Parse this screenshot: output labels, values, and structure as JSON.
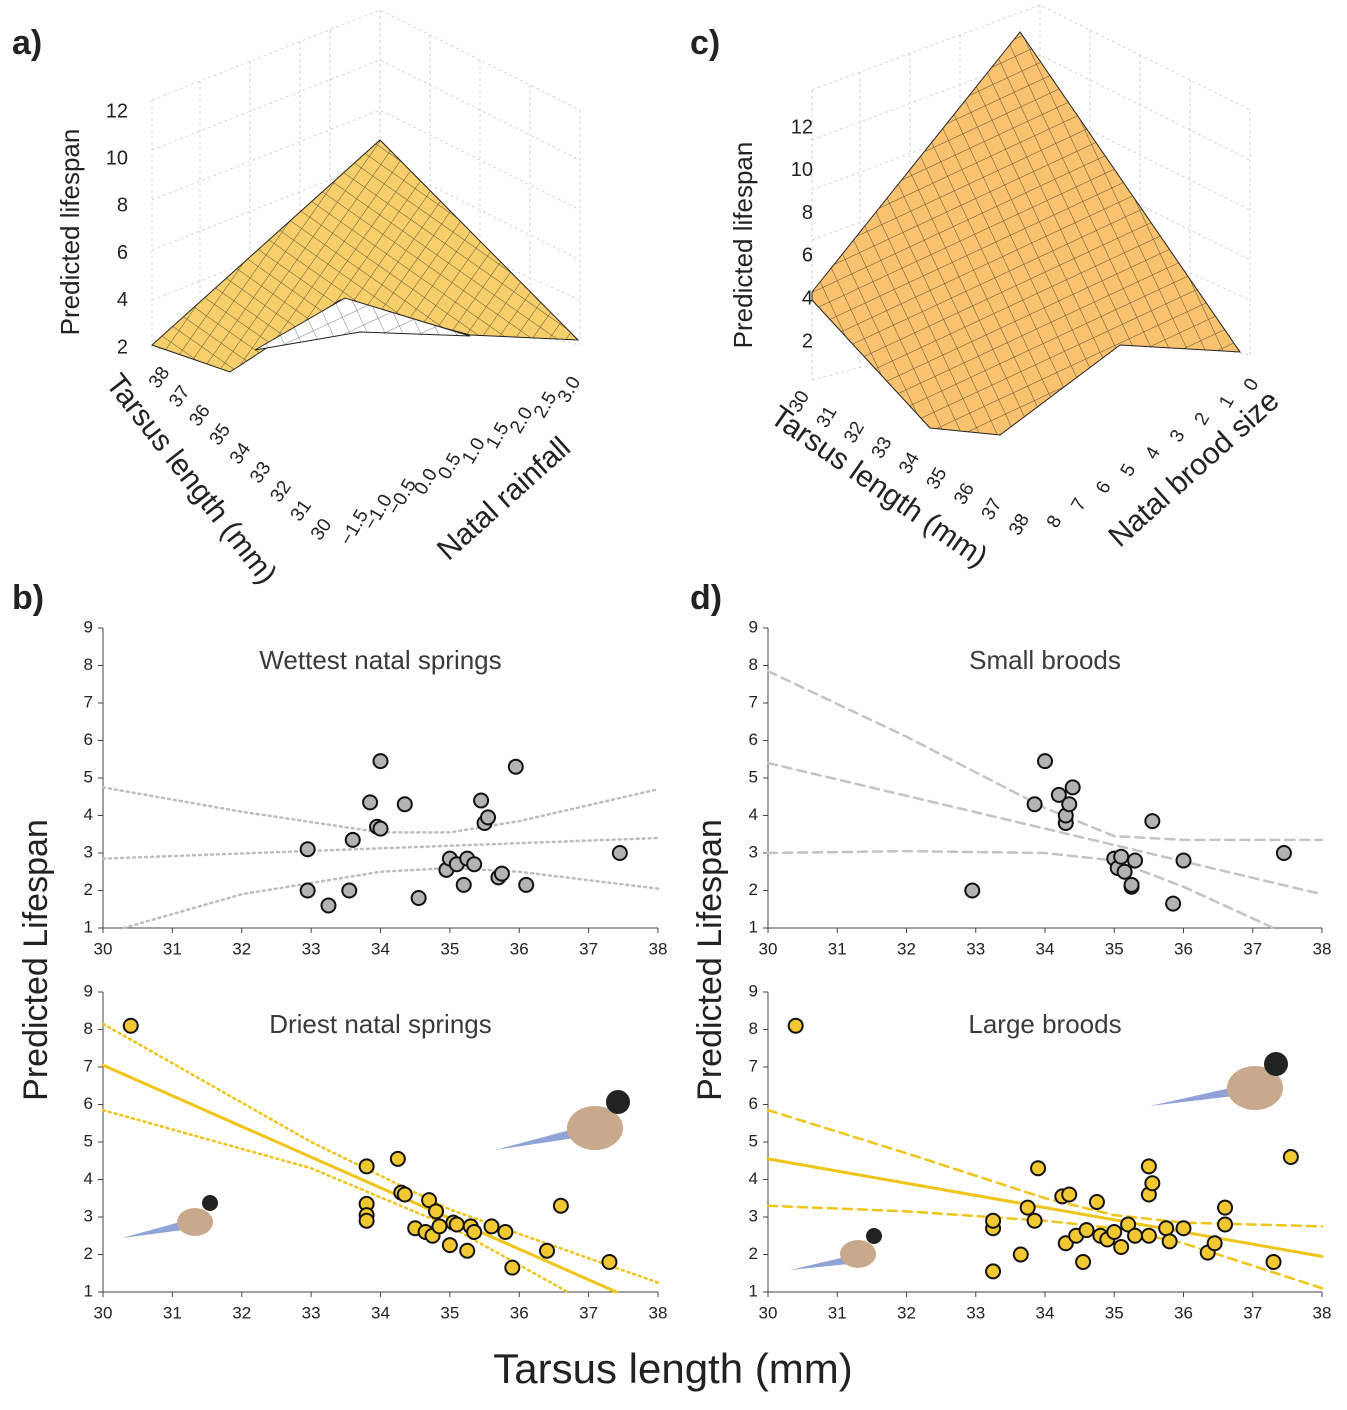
{
  "figure_xlabel": "Tarsus length (mm)",
  "chart_data": [
    {
      "type": "surface",
      "panel": "a)",
      "zlabel": "Predicted  lifespan",
      "xlabel": "Tarsus  length  (mm)",
      "ylabel": "Natal rainfall",
      "zlim": [
        2,
        12
      ],
      "zticks": [
        2,
        4,
        6,
        8,
        10,
        12
      ],
      "xlim": [
        30,
        38
      ],
      "xticks": [
        30,
        31,
        32,
        33,
        34,
        35,
        36,
        37,
        38
      ],
      "ylim": [
        -1.5,
        3.0
      ],
      "yticks": [
        {
          "value": -1.5,
          "label": "−1.5"
        },
        {
          "value": -1.0,
          "label": "−1.0"
        },
        {
          "value": -0.5,
          "label": "−0.5"
        },
        {
          "value": 0,
          "label": "0.0"
        },
        0.5,
        {
          "value": 1.0,
          "label": "1.0"
        },
        1.5,
        {
          "value": 2.0,
          "label": "2.0"
        },
        2.5,
        {
          "value": 3.0,
          "label": "3.0"
        }
      ],
      "color": "#f6cf6b"
    },
    {
      "type": "scatter",
      "panel": "b)",
      "title": "Wettest natal springs",
      "ylabel": "Predicted Lifespan",
      "xlim": [
        30,
        38
      ],
      "xticks": [
        30,
        31,
        32,
        33,
        34,
        35,
        36,
        37,
        38
      ],
      "ylim": [
        1,
        9
      ],
      "yticks": [
        1,
        2,
        3,
        4,
        5,
        6,
        7,
        8,
        9
      ],
      "points": {
        "color": "#b3b3b3",
        "x": [
          32.95,
          32.95,
          33.25,
          33.55,
          33.6,
          33.85,
          33.95,
          34.0,
          34.0,
          34.35,
          34.55,
          34.95,
          35.0,
          35.1,
          35.2,
          35.25,
          35.35,
          35.45,
          35.5,
          35.55,
          35.7,
          35.75,
          35.95,
          36.1,
          37.45
        ],
        "y": [
          3.1,
          2.0,
          1.6,
          2.0,
          3.35,
          4.35,
          3.7,
          3.65,
          5.45,
          4.3,
          1.8,
          2.55,
          2.85,
          2.7,
          2.15,
          2.85,
          2.7,
          4.4,
          3.8,
          3.95,
          2.35,
          2.45,
          5.3,
          2.15,
          3.0
        ]
      },
      "lines": [
        {
          "dash": "dotted",
          "color": "#bdbdbd",
          "x": [
            30,
            38
          ],
          "y": [
            2.85,
            3.4
          ]
        },
        {
          "dash": "dotted",
          "color": "#bdbdbd",
          "x": [
            30,
            32,
            34,
            35,
            36,
            38
          ],
          "y": [
            4.75,
            4.1,
            3.55,
            3.55,
            3.85,
            4.7
          ]
        },
        {
          "dash": "dotted",
          "color": "#bdbdbd",
          "x": [
            30.3,
            32,
            34,
            35,
            36,
            38
          ],
          "y": [
            1.0,
            1.9,
            2.5,
            2.6,
            2.5,
            2.05
          ]
        }
      ]
    },
    {
      "type": "scatter",
      "title": "Driest natal springs",
      "xlim": [
        30,
        38
      ],
      "xticks": [
        30,
        31,
        32,
        33,
        34,
        35,
        36,
        37,
        38
      ],
      "ylim": [
        1,
        9
      ],
      "yticks": [
        1,
        2,
        3,
        4,
        5,
        6,
        7,
        8,
        9
      ],
      "points": {
        "color": "#f2c832",
        "x": [
          30.4,
          33.8,
          33.8,
          33.8,
          33.8,
          34.25,
          34.3,
          34.35,
          34.5,
          34.65,
          34.7,
          34.75,
          34.8,
          34.85,
          35.0,
          35.05,
          35.1,
          35.25,
          35.3,
          35.35,
          35.6,
          35.8,
          35.9,
          36.4,
          36.6,
          37.3
        ],
        "y": [
          8.1,
          4.35,
          3.35,
          3.05,
          2.9,
          4.55,
          3.65,
          3.6,
          2.7,
          2.6,
          3.45,
          2.5,
          3.15,
          2.75,
          2.25,
          2.85,
          2.8,
          2.1,
          2.75,
          2.6,
          2.75,
          2.6,
          1.65,
          2.1,
          3.3,
          1.8
        ]
      },
      "lines": [
        {
          "dash": "solid",
          "color": "#f0c419",
          "x": [
            30,
            37.4
          ],
          "y": [
            7.05,
            1.0
          ]
        },
        {
          "dash": "dotted",
          "color": "#f0c419",
          "x": [
            30,
            33,
            35,
            38
          ],
          "y": [
            8.15,
            5.0,
            3.2,
            1.25
          ]
        },
        {
          "dash": "dotted",
          "color": "#f0c419",
          "x": [
            30,
            33,
            35,
            36.7
          ],
          "y": [
            5.85,
            4.3,
            2.75,
            1.0
          ]
        }
      ]
    },
    {
      "type": "surface",
      "panel": "c)",
      "zlabel": "Predicted lifespan",
      "xlabel": "Tarsus  length  (mm)",
      "ylabel": "Natal brood size",
      "zlim": [
        2,
        12
      ],
      "zticks": [
        2,
        4,
        6,
        8,
        10,
        12
      ],
      "xlim": [
        30,
        38
      ],
      "xticks": [
        30,
        31,
        32,
        33,
        34,
        35,
        36,
        37,
        38
      ],
      "ylim": [
        0,
        8
      ],
      "yticks": [
        0,
        1,
        2,
        3,
        4,
        5,
        6,
        7,
        8
      ],
      "color": "#f8c26e"
    },
    {
      "type": "scatter",
      "panel": "d)",
      "title": "Small broods",
      "ylabel": "Predicted Lifespan",
      "xlim": [
        30,
        38
      ],
      "xticks": [
        30,
        31,
        32,
        33,
        34,
        35,
        36,
        37,
        38
      ],
      "ylim": [
        1,
        9
      ],
      "yticks": [
        1,
        2,
        3,
        4,
        5,
        6,
        7,
        8,
        9
      ],
      "points": {
        "color": "#b3b3b3",
        "x": [
          32.95,
          33.85,
          34.0,
          34.2,
          34.3,
          34.3,
          34.35,
          34.4,
          35.0,
          35.05,
          35.1,
          35.15,
          35.25,
          35.25,
          35.3,
          35.55,
          35.85,
          36.0,
          37.45
        ],
        "y": [
          2.0,
          4.3,
          5.45,
          4.55,
          3.8,
          4.0,
          4.3,
          4.75,
          2.85,
          2.6,
          2.9,
          2.5,
          2.1,
          2.15,
          2.8,
          3.85,
          1.65,
          2.8,
          3.0
        ]
      },
      "lines": [
        {
          "dash": "dashed",
          "color": "#c4c4c4",
          "x": [
            30,
            38
          ],
          "y": [
            5.4,
            1.9
          ]
        },
        {
          "dash": "dashed",
          "color": "#c4c4c4",
          "x": [
            30,
            32,
            34,
            35,
            36,
            38
          ],
          "y": [
            7.85,
            6.1,
            4.2,
            3.45,
            3.35,
            3.35
          ]
        },
        {
          "dash": "dashed",
          "color": "#c4c4c4",
          "x": [
            30,
            32,
            34,
            35,
            36,
            37.3
          ],
          "y": [
            3.0,
            3.05,
            3.0,
            2.8,
            2.1,
            1.0
          ]
        }
      ]
    },
    {
      "type": "scatter",
      "title": "Large broods",
      "xlim": [
        30,
        38
      ],
      "xticks": [
        30,
        31,
        32,
        33,
        34,
        35,
        36,
        37,
        38
      ],
      "ylim": [
        1,
        9
      ],
      "yticks": [
        1,
        2,
        3,
        4,
        5,
        6,
        7,
        8,
        9
      ],
      "points": {
        "color": "#f2c832",
        "x": [
          30.4,
          33.25,
          33.25,
          33.25,
          33.65,
          33.75,
          33.85,
          33.9,
          34.25,
          34.3,
          34.35,
          34.45,
          34.55,
          34.6,
          34.75,
          34.8,
          34.9,
          35.0,
          35.1,
          35.2,
          35.3,
          35.5,
          35.5,
          35.5,
          35.55,
          35.75,
          35.8,
          36.0,
          36.35,
          36.45,
          36.6,
          36.6,
          37.3,
          37.55
        ],
        "y": [
          8.1,
          1.55,
          2.7,
          2.9,
          2.0,
          3.25,
          2.9,
          4.3,
          3.55,
          2.3,
          3.6,
          2.5,
          1.8,
          2.65,
          3.4,
          2.5,
          2.4,
          2.6,
          2.2,
          2.8,
          2.5,
          2.5,
          3.6,
          4.35,
          3.9,
          2.7,
          2.35,
          2.7,
          2.05,
          2.3,
          2.8,
          3.25,
          1.8,
          4.6
        ]
      },
      "lines": [
        {
          "dash": "solid",
          "color": "#f0c419",
          "x": [
            30,
            38
          ],
          "y": [
            4.55,
            1.95
          ]
        },
        {
          "dash": "dashed",
          "color": "#f0c419",
          "x": [
            30,
            32,
            34,
            35,
            36,
            38
          ],
          "y": [
            5.85,
            4.7,
            3.5,
            3.05,
            2.85,
            2.75
          ]
        },
        {
          "dash": "dashed",
          "color": "#f0c419",
          "x": [
            30,
            32,
            34,
            35,
            36,
            38
          ],
          "y": [
            3.3,
            3.15,
            2.9,
            2.7,
            2.3,
            1.1
          ]
        }
      ]
    }
  ]
}
